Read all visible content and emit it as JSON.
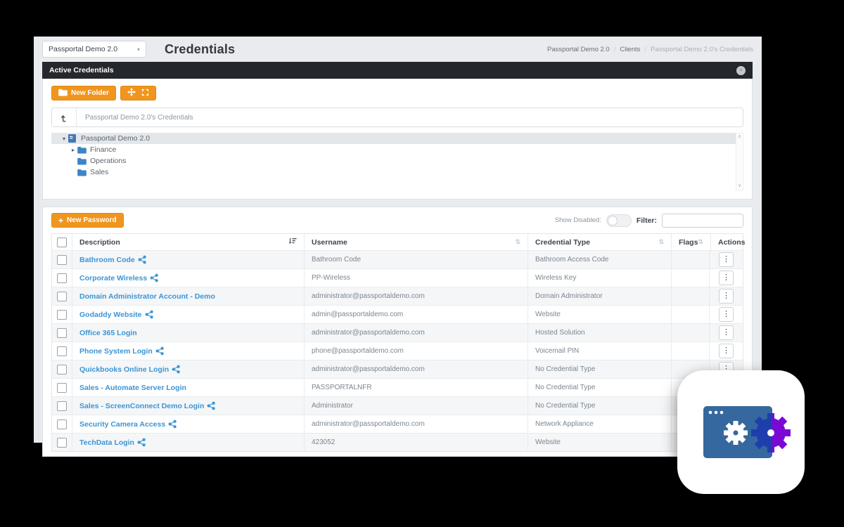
{
  "header": {
    "org_selector": {
      "value": "Passportal Demo 2.0"
    },
    "page_title": "Credentials",
    "breadcrumb": {
      "items": [
        "Passportal Demo 2.0",
        "Clients",
        "Passportal Demo 2.0's Credentials"
      ],
      "separator": "/"
    }
  },
  "panel": {
    "title": "Active Credentials"
  },
  "folders": {
    "new_folder_button": "New Folder",
    "path_bar": {
      "path": "Passportal Demo 2.0's Credentials"
    },
    "tree": [
      {
        "label": "Passportal Demo 2.0",
        "icon": "org",
        "caret": "down",
        "level": 0,
        "selected": true
      },
      {
        "label": "Finance",
        "icon": "folder",
        "caret": "right",
        "level": 1,
        "selected": false
      },
      {
        "label": "Operations",
        "icon": "folder",
        "caret": "none",
        "level": 1,
        "selected": false
      },
      {
        "label": "Sales",
        "icon": "folder",
        "caret": "none",
        "level": 1,
        "selected": false
      }
    ]
  },
  "toolbar": {
    "new_password_button": "New Password",
    "show_disabled_label": "Show Disabled:",
    "filter_label": "Filter:",
    "filter_value": ""
  },
  "table": {
    "columns": [
      "Description",
      "Username",
      "Credential Type",
      "Flags",
      "Actions"
    ],
    "rows": [
      {
        "description": "Bathroom Code",
        "shared": true,
        "username": "Bathroom Code",
        "credential_type": "Bathroom Access Code",
        "flags": ""
      },
      {
        "description": "Corporate Wireless",
        "shared": true,
        "username": "PP-Wireless",
        "credential_type": "Wireless Key",
        "flags": ""
      },
      {
        "description": "Domain Administrator Account - Demo",
        "shared": false,
        "username": "administrator@passportaldemo.com",
        "credential_type": "Domain Administrator",
        "flags": ""
      },
      {
        "description": "Godaddy Website",
        "shared": true,
        "username": "admin@passportaldemo.com",
        "credential_type": "Website",
        "flags": ""
      },
      {
        "description": "Office 365 Login",
        "shared": false,
        "username": "administrator@passportaldemo.com",
        "credential_type": "Hosted Solution",
        "flags": ""
      },
      {
        "description": "Phone System Login",
        "shared": true,
        "username": "phone@passportaldemo.com",
        "credential_type": "Voicemail PIN",
        "flags": ""
      },
      {
        "description": "Quickbooks Online Login",
        "shared": true,
        "username": "administrator@passportaldemo.com",
        "credential_type": "No Credential Type",
        "flags": ""
      },
      {
        "description": "Sales - Automate Server Login",
        "shared": false,
        "username": "PASSPORTALNFR",
        "credential_type": "No Credential Type",
        "flags": ""
      },
      {
        "description": "Sales - ScreenConnect Demo Login",
        "shared": true,
        "username": "Administrator",
        "credential_type": "No Credential Type",
        "flags": ""
      },
      {
        "description": "Security Camera Access",
        "shared": true,
        "username": "administrator@passportaldemo.com",
        "credential_type": "Network Appliance",
        "flags": ""
      },
      {
        "description": "TechData Login",
        "shared": true,
        "username": "423052",
        "credential_type": "Website",
        "flags": ""
      }
    ]
  },
  "icons": {
    "plus": "+",
    "kebab": "⋮",
    "caret_down": "▾",
    "caret_right": "▸",
    "select_caret": "▾",
    "unsorted": "⇅",
    "scroll_up": "∧",
    "scroll_down": "∨"
  },
  "colors": {
    "accent_orange": "#f0961e",
    "link_blue": "#3b95d4",
    "panel_header_bg": "#24272c",
    "app_icon_window_blue": "#35689e",
    "app_icon_gear_dark_blue": "#1e3eae",
    "app_icon_gear_purple": "#7b08d5"
  }
}
